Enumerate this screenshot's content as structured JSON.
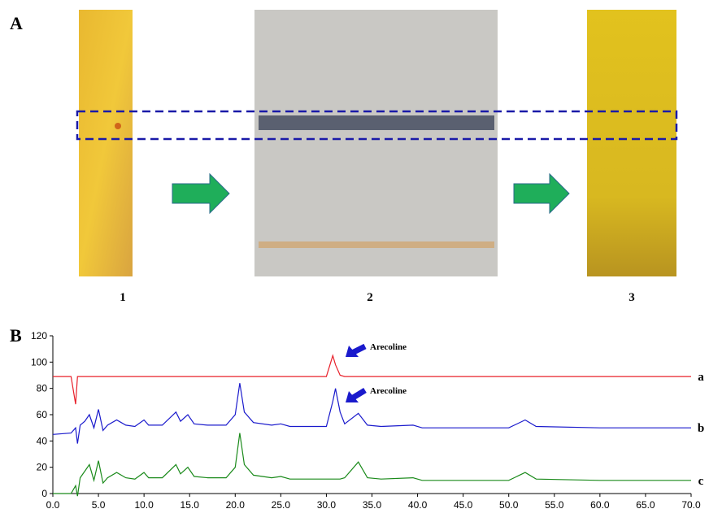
{
  "panel_a": {
    "label": "A",
    "plates": [
      "1",
      "2",
      "3"
    ]
  },
  "chart_data": {
    "type": "line",
    "label": "B",
    "x": [
      0,
      2,
      2.5,
      2.7,
      3,
      3.5,
      4,
      4.5,
      5,
      5.5,
      6,
      7,
      8,
      9,
      10,
      10.5,
      12,
      13.5,
      14,
      14.8,
      15.5,
      17,
      19,
      20,
      20.5,
      21,
      22,
      24,
      25,
      26,
      28,
      30,
      30.7,
      31,
      31.5,
      32,
      33.5,
      34.5,
      36,
      39.5,
      40.5,
      45,
      50,
      51.8,
      53,
      60,
      70
    ],
    "series": [
      {
        "name": "a",
        "color": "#e8202a",
        "values": [
          89,
          89,
          68,
          89,
          89,
          89,
          89,
          89,
          89,
          89,
          89,
          89,
          89,
          89,
          89,
          89,
          89,
          89,
          89,
          89,
          89,
          89,
          89,
          89,
          89,
          89,
          89,
          89,
          89,
          89,
          89,
          89,
          105,
          98,
          90,
          89,
          89,
          89,
          89,
          89,
          89,
          89,
          89,
          89,
          89,
          89,
          89
        ]
      },
      {
        "name": "b",
        "color": "#1a1acc",
        "values": [
          45,
          46,
          50,
          38,
          52,
          55,
          60,
          50,
          64,
          48,
          52,
          56,
          52,
          51,
          56,
          52,
          52,
          62,
          55,
          60,
          53,
          52,
          52,
          60,
          84,
          62,
          54,
          52,
          53,
          51,
          51,
          51,
          70,
          80,
          62,
          53,
          61,
          52,
          51,
          52,
          50,
          50,
          50,
          56,
          51,
          50,
          50
        ]
      },
      {
        "name": "c",
        "color": "#1a8a1a",
        "values": [
          0,
          0,
          6,
          -2,
          12,
          17,
          22,
          10,
          25,
          8,
          12,
          16,
          12,
          11,
          16,
          12,
          12,
          22,
          15,
          20,
          13,
          12,
          12,
          20,
          46,
          22,
          14,
          12,
          13,
          11,
          11,
          11,
          11,
          11,
          11,
          12,
          24,
          12,
          11,
          12,
          10,
          10,
          10,
          16,
          11,
          10,
          10
        ]
      }
    ],
    "annotations": [
      "Arecoline",
      "Arecoline"
    ],
    "xlim": [
      0,
      70
    ],
    "xticks": [
      {
        "value": 0,
        "label": "0.0"
      },
      {
        "value": 5,
        "label": "5.0"
      },
      {
        "value": 10,
        "label": "10.0"
      },
      {
        "value": 15,
        "label": "15.0"
      },
      {
        "value": 20,
        "label": "20.0"
      },
      {
        "value": 25,
        "label": "25.0"
      },
      {
        "value": 30,
        "label": "30.0"
      },
      {
        "value": 35,
        "label": "35.0"
      },
      {
        "value": 40,
        "label": "40.0"
      },
      {
        "value": 45,
        "label": "45.0"
      },
      {
        "value": 50,
        "label": "50.0"
      },
      {
        "value": 55,
        "label": "55.0"
      },
      {
        "value": 60,
        "label": "60.0"
      },
      {
        "value": 65,
        "label": "65.0"
      },
      {
        "value": 70,
        "label": "70.0"
      }
    ],
    "ylim": [
      0,
      120
    ],
    "yticks": [
      0,
      20,
      40,
      60,
      80,
      100,
      120
    ]
  }
}
